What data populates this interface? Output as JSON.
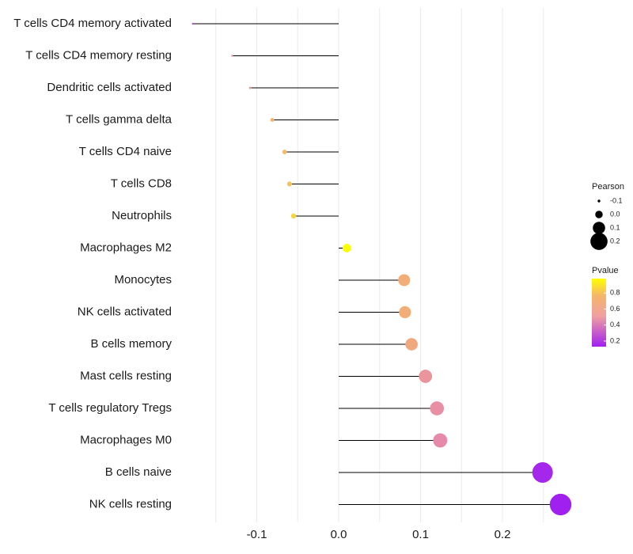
{
  "chart_data": {
    "type": "lollipop",
    "title": "",
    "xlabel": "",
    "ylabel": "",
    "xlim": [
      -0.2,
      0.28
    ],
    "xticks": [
      -0.1,
      0.0,
      0.1,
      0.2
    ],
    "xtick_labels": [
      "-0.1",
      "0.0",
      "0.1",
      "0.2"
    ],
    "grid": true,
    "legend_position": "right",
    "categories": [
      "T cells CD4 memory activated",
      "T cells CD4 memory resting",
      "Dendritic cells activated",
      "T cells gamma delta",
      "T cells CD4 naive",
      "T cells CD8",
      "Neutrophils",
      "Macrophages M2",
      "Monocytes",
      "NK cells activated",
      "B cells memory",
      "Mast cells resting",
      "T cells regulatory  Tregs ",
      "Macrophages M0",
      "B cells naive",
      "NK cells resting"
    ],
    "pearson": [
      -0.178,
      -0.13,
      -0.108,
      -0.081,
      -0.066,
      -0.06,
      -0.055,
      0.01,
      0.08,
      0.081,
      0.089,
      0.106,
      0.12,
      0.124,
      0.249,
      0.271
    ],
    "pvalue": [
      0.25,
      0.5,
      0.55,
      0.68,
      0.71,
      0.75,
      0.82,
      0.98,
      0.65,
      0.65,
      0.62,
      0.5,
      0.47,
      0.44,
      0.15,
      0.13
    ],
    "legend_size": {
      "title": "Pearson",
      "labels": [
        "-0.1",
        "0.0",
        "0.1",
        "0.2"
      ],
      "values": [
        -0.1,
        0.0,
        0.1,
        0.2
      ]
    },
    "legend_color": {
      "title": "Pvalue",
      "labels": [
        "0.8",
        "0.6",
        "0.4",
        "0.2"
      ],
      "values": [
        0.8,
        0.6,
        0.4,
        0.2
      ],
      "range": [
        0.13,
        0.98
      ]
    },
    "colors": {
      "low": "#a020f0",
      "mid": "#f0a0a0",
      "mid2": "#f4b66a",
      "high": "#ffff00",
      "stem": "#000000",
      "grid": "#ebebeb"
    }
  }
}
